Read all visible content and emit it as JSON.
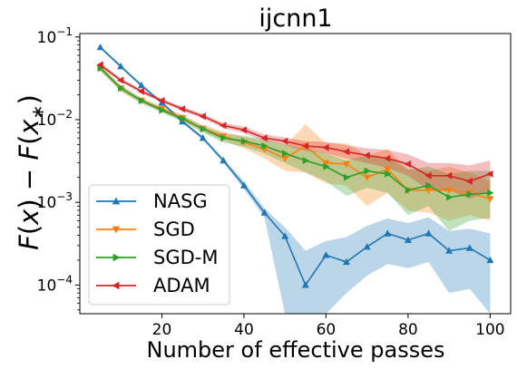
{
  "chart_data": {
    "type": "line",
    "title": "ijcnn1",
    "xlabel": "Number of effective passes",
    "ylabel": "F(x) − F(x*)",
    "y_scale": "log",
    "xlim": [
      0,
      105
    ],
    "ylim": [
      4.5e-05,
      0.11
    ],
    "x_ticks": [
      20,
      40,
      60,
      80,
      100
    ],
    "x_tick_labels": [
      "20",
      "40",
      "60",
      "80",
      "100"
    ],
    "y_ticks": [
      0.0001,
      0.001,
      0.01,
      0.1
    ],
    "y_tick_labels": [
      {
        "base": "10",
        "exp": "−4"
      },
      {
        "base": "10",
        "exp": "−3"
      },
      {
        "base": "10",
        "exp": "−2"
      },
      {
        "base": "10",
        "exp": "−1"
      }
    ],
    "grid": false,
    "legend_position": "lower-left",
    "series": [
      {
        "name": "NASG",
        "color": "#1f77b4",
        "marker": "triangle-up",
        "x": [
          5,
          10,
          15,
          20,
          25,
          30,
          35,
          40,
          45,
          50,
          55,
          60,
          65,
          70,
          75,
          80,
          85,
          90,
          95,
          100
        ],
        "y": [
          0.075,
          0.044,
          0.026,
          0.016,
          0.0095,
          0.006,
          0.0032,
          0.0016,
          0.00075,
          0.00039,
          0.0001,
          0.00023,
          0.00019,
          0.00029,
          0.00042,
          0.00035,
          0.00042,
          0.00026,
          0.00028,
          0.0002
        ],
        "lower": [
          0.072,
          0.042,
          0.025,
          0.0155,
          0.009,
          0.0057,
          0.003,
          0.00145,
          0.00065,
          4.5e-05,
          4.5e-05,
          4.5e-05,
          8e-05,
          0.00013,
          0.00018,
          0.00016,
          0.00019,
          8e-05,
          9e-05,
          4.5e-05
        ],
        "upper": [
          0.078,
          0.046,
          0.027,
          0.0168,
          0.0099,
          0.0063,
          0.0034,
          0.0018,
          0.00085,
          0.0005,
          0.00026,
          0.00034,
          0.00038,
          0.00052,
          0.00064,
          0.00056,
          0.00066,
          0.00045,
          0.00048,
          0.00042
        ]
      },
      {
        "name": "SGD",
        "color": "#ff7f0e",
        "marker": "triangle-down",
        "x": [
          5,
          10,
          15,
          20,
          25,
          30,
          35,
          40,
          45,
          50,
          55,
          60,
          65,
          70,
          75,
          80,
          85,
          90,
          95,
          100
        ],
        "y": [
          0.042,
          0.024,
          0.017,
          0.0135,
          0.0105,
          0.0078,
          0.0063,
          0.0053,
          0.0044,
          0.0034,
          0.0048,
          0.003,
          0.0029,
          0.002,
          0.0025,
          0.0014,
          0.0014,
          0.0014,
          0.0013,
          0.0011
        ],
        "lower": [
          0.039,
          0.022,
          0.0158,
          0.0125,
          0.0097,
          0.0071,
          0.0056,
          0.0045,
          0.0034,
          0.0024,
          0.0023,
          0.0017,
          0.0016,
          0.0009,
          0.0013,
          0.0008,
          0.00075,
          0.0006,
          0.0007,
          0.0006
        ],
        "upper": [
          0.045,
          0.026,
          0.0182,
          0.0145,
          0.0114,
          0.0086,
          0.0071,
          0.0062,
          0.0055,
          0.0048,
          0.0088,
          0.0052,
          0.0052,
          0.0037,
          0.0044,
          0.0025,
          0.0024,
          0.0027,
          0.0023,
          0.0018
        ]
      },
      {
        "name": "SGD-M",
        "color": "#2ca02c",
        "marker": "triangle-right",
        "x": [
          5,
          10,
          15,
          20,
          25,
          30,
          35,
          40,
          45,
          50,
          55,
          60,
          65,
          70,
          75,
          80,
          85,
          90,
          95,
          100
        ],
        "y": [
          0.042,
          0.024,
          0.017,
          0.013,
          0.0103,
          0.0077,
          0.006,
          0.0055,
          0.0048,
          0.0039,
          0.0032,
          0.0027,
          0.002,
          0.0024,
          0.0022,
          0.0014,
          0.0016,
          0.00115,
          0.00125,
          0.0013
        ],
        "lower": [
          0.039,
          0.022,
          0.0158,
          0.0121,
          0.0095,
          0.007,
          0.0053,
          0.0047,
          0.0039,
          0.003,
          0.0023,
          0.0018,
          0.0012,
          0.0015,
          0.0013,
          0.0007,
          0.0009,
          0.00045,
          0.0006,
          0.00065
        ],
        "upper": [
          0.045,
          0.026,
          0.0182,
          0.014,
          0.0111,
          0.0084,
          0.0068,
          0.0064,
          0.0058,
          0.005,
          0.0044,
          0.0039,
          0.0032,
          0.0037,
          0.0035,
          0.0025,
          0.0027,
          0.0022,
          0.0024,
          0.0024
        ]
      },
      {
        "name": "ADAM",
        "color": "#d62728",
        "marker": "triangle-left",
        "x": [
          5,
          10,
          15,
          20,
          25,
          30,
          35,
          40,
          45,
          50,
          55,
          60,
          65,
          70,
          75,
          80,
          85,
          90,
          95,
          100
        ],
        "y": [
          0.046,
          0.03,
          0.022,
          0.017,
          0.0135,
          0.011,
          0.0085,
          0.0075,
          0.006,
          0.0055,
          0.0048,
          0.0046,
          0.0041,
          0.0037,
          0.0034,
          0.0029,
          0.0021,
          0.0021,
          0.0018,
          0.0022
        ],
        "lower": [
          0.043,
          0.0285,
          0.0208,
          0.0161,
          0.0127,
          0.0103,
          0.0079,
          0.0069,
          0.0055,
          0.0049,
          0.0042,
          0.0039,
          0.0034,
          0.003,
          0.0026,
          0.0021,
          0.0014,
          0.0014,
          0.0011,
          0.0014
        ],
        "upper": [
          0.049,
          0.0315,
          0.0232,
          0.0179,
          0.0143,
          0.0117,
          0.0091,
          0.0082,
          0.0066,
          0.0061,
          0.0055,
          0.0054,
          0.0049,
          0.0045,
          0.0043,
          0.0038,
          0.003,
          0.003,
          0.0028,
          0.0032
        ]
      }
    ]
  }
}
